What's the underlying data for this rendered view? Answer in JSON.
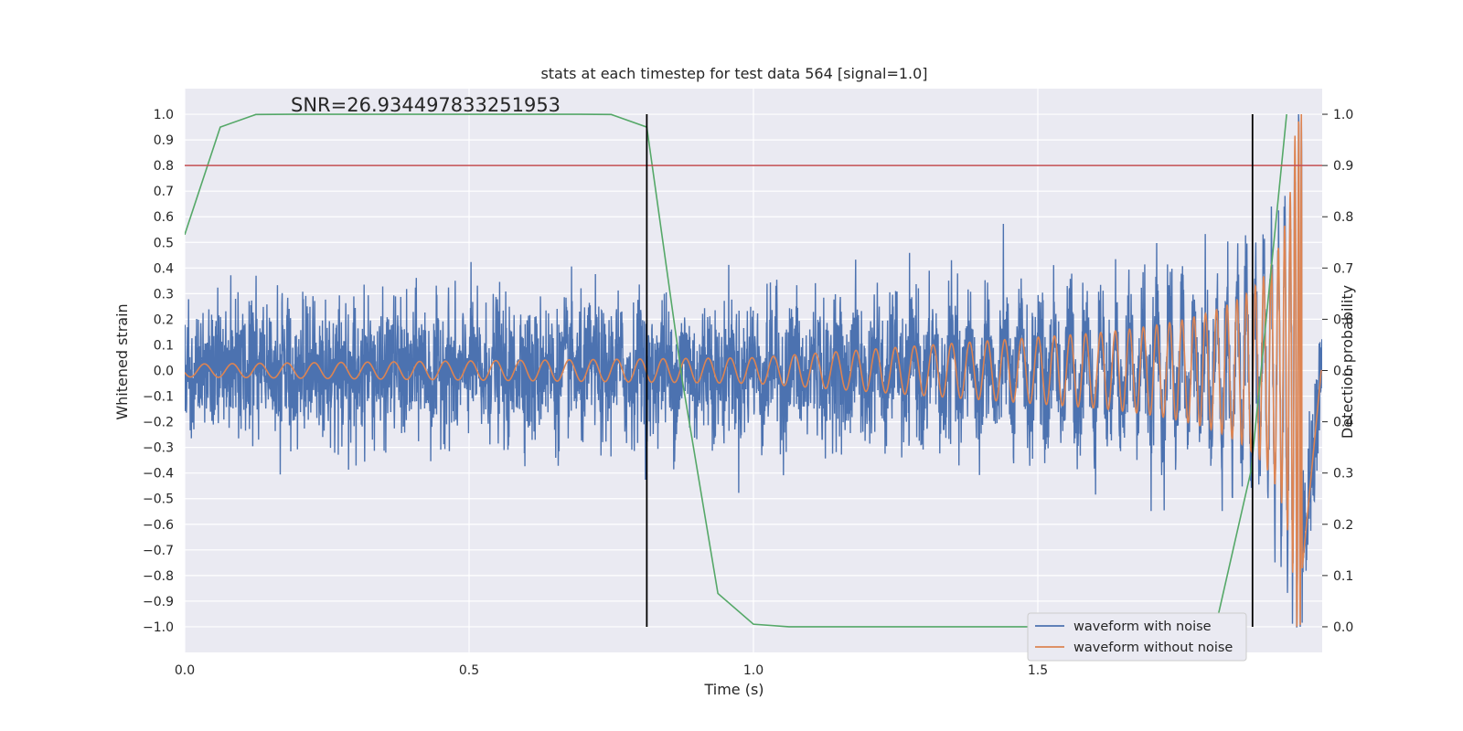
{
  "chart_data": {
    "type": "line",
    "title": "stats at each timestep for test data 564 [signal=1.0]",
    "xlabel": "Time (s)",
    "ylabel": "Whitened strain",
    "y2label": "Detection probability",
    "annotation": "SNR=26.934497833251953",
    "xlim": [
      0,
      2.0
    ],
    "ylim": [
      -1.1,
      1.1
    ],
    "y2lim": [
      -0.05,
      1.05
    ],
    "xticks": [
      "0.0",
      "0.5",
      "1.0",
      "1.5"
    ],
    "xtick_values": [
      0,
      0.5,
      1.0,
      1.5
    ],
    "yticks": [
      "−1.0",
      "−0.9",
      "−0.8",
      "−0.7",
      "−0.6",
      "−0.5",
      "−0.4",
      "−0.3",
      "−0.2",
      "−0.1",
      "0.0",
      "0.1",
      "0.2",
      "0.3",
      "0.4",
      "0.5",
      "0.6",
      "0.7",
      "0.8",
      "0.9",
      "1.0"
    ],
    "ytick_values": [
      -1.0,
      -0.9,
      -0.8,
      -0.7,
      -0.6,
      -0.5,
      -0.4,
      -0.3,
      -0.2,
      -0.1,
      0.0,
      0.1,
      0.2,
      0.3,
      0.4,
      0.5,
      0.6,
      0.7,
      0.8,
      0.9,
      1.0
    ],
    "y2ticks": [
      "0.0",
      "0.1",
      "0.2",
      "0.3",
      "0.4",
      "0.5",
      "0.6",
      "0.7",
      "0.8",
      "0.9",
      "1.0"
    ],
    "y2tick_values": [
      0.0,
      0.1,
      0.2,
      0.3,
      0.4,
      0.5,
      0.6,
      0.7,
      0.8,
      0.9,
      1.0
    ],
    "grid": true,
    "legend_position": "bottom-right",
    "series": [
      {
        "name": "waveform with noise",
        "color": "#4c72b0",
        "description": "noisy whitened strain, amplitude mostly within ±0.4, spikes to ~±0.55; large excursion near end (~1.96 s) reaching ~±1.0",
        "amplitude_typical": 0.2,
        "peak_time": 1.965
      },
      {
        "name": "waveform without noise",
        "color": "#dd8452",
        "description": "chirp signal increasing in amplitude and frequency, amplitude ~0.025 at 0 s, ~0.05 at 1.0 s, ~0.15 at 1.6 s, peak ~1.0 at ~1.965 s",
        "points": [
          [
            0.0,
            0.025
          ],
          [
            1.0,
            0.05
          ],
          [
            1.5,
            0.1
          ],
          [
            1.75,
            0.2
          ],
          [
            1.9,
            0.5
          ],
          [
            1.965,
            1.0
          ]
        ]
      },
      {
        "name": "",
        "axis": "right",
        "color": "#55a868",
        "x": [
          0.0,
          0.0625,
          0.125,
          0.1875,
          0.25,
          0.3125,
          0.375,
          0.4375,
          0.5,
          0.5625,
          0.625,
          0.6875,
          0.75,
          0.8125,
          0.875,
          0.9375,
          1.0,
          1.0625,
          1.125,
          1.1875,
          1.25,
          1.3125,
          1.375,
          1.4375,
          1.5,
          1.5625,
          1.625,
          1.6875,
          1.75,
          1.8125,
          1.875,
          1.9375
        ],
        "y": [
          0.765,
          0.975,
          0.9995,
          1.0,
          1.0,
          1.0,
          1.0,
          1.0,
          1.0,
          1.0,
          1.0,
          1.0,
          0.9995,
          0.975,
          0.48,
          0.065,
          0.005,
          0.0,
          0.0,
          0.0,
          0.0,
          0.0,
          0.0,
          0.0,
          0.0,
          0.0,
          0.0,
          0.0,
          0.0,
          0.0,
          0.305,
          1.0
        ]
      }
    ],
    "hlines": [
      {
        "y": 0.8,
        "color": "#c44e52"
      }
    ],
    "vlines": [
      {
        "x": 0.8125,
        "ymin": -1.0,
        "ymax": 1.0,
        "color": "#000000"
      },
      {
        "x": 1.8775,
        "ymin": -1.0,
        "ymax": 1.0,
        "color": "#000000"
      }
    ]
  }
}
